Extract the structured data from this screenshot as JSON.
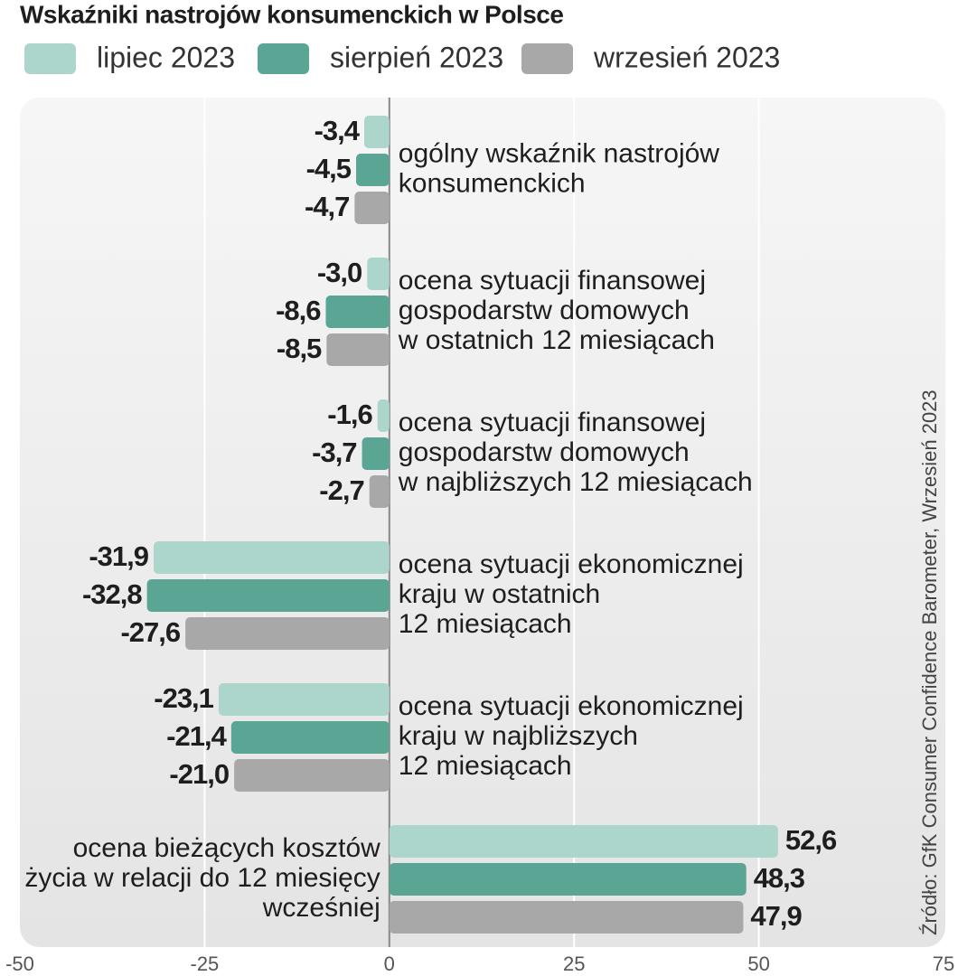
{
  "chart_data": {
    "type": "hbar",
    "title": "Wskaźniki nastrojów konsumenckich w Polsce",
    "source": "Źródło: GfK Consumer Confidence Barometer, Wrzesień 2023",
    "categories": [
      [
        "ogólny wskaźnik nastrojów",
        "konsumenckich"
      ],
      [
        "ocena sytuacji finansowej",
        "gospodarstw domowych",
        "w ostatnich 12 miesiącach"
      ],
      [
        "ocena sytuacji finansowej",
        "gospodarstw domowych",
        "w najbliższych 12 miesiącach"
      ],
      [
        "ocena sytuacji ekonomicznej",
        "kraju w ostatnich",
        "12 miesiącach"
      ],
      [
        "ocena sytuacji ekonomicznej",
        "kraju w najbliższych",
        "12 miesiącach"
      ],
      [
        "ocena bieżących kosztów",
        "życia w relacji do 12 miesięcy",
        "wcześniej"
      ]
    ],
    "series": [
      {
        "name": "lipiec 2023",
        "color": "#acd6cb",
        "values": [
          -3.4,
          -3.0,
          -1.6,
          -31.9,
          -23.1,
          52.6
        ],
        "value_labels": [
          "-3,4",
          "-3,0",
          "-1,6",
          "-31,9",
          "-23,1",
          "52,6"
        ]
      },
      {
        "name": "sierpień 2023",
        "color": "#5ba594",
        "values": [
          -4.5,
          -8.6,
          -3.7,
          -32.8,
          -21.4,
          48.3
        ],
        "value_labels": [
          "-4,5",
          "-8,6",
          "-3,7",
          "-32,8",
          "-21,4",
          "48,3"
        ]
      },
      {
        "name": "wrzesień 2023",
        "color": "#a8a8a8",
        "values": [
          -4.7,
          -8.5,
          -2.7,
          -27.6,
          -21.0,
          47.9
        ],
        "value_labels": [
          "-4,7",
          "-8,5",
          "-2,7",
          "-27,6",
          "-21,0",
          "47,9"
        ]
      }
    ],
    "xlim": [
      -50,
      75
    ],
    "xticks": [
      -50,
      -25,
      0,
      25,
      50,
      75
    ],
    "grid": true
  }
}
